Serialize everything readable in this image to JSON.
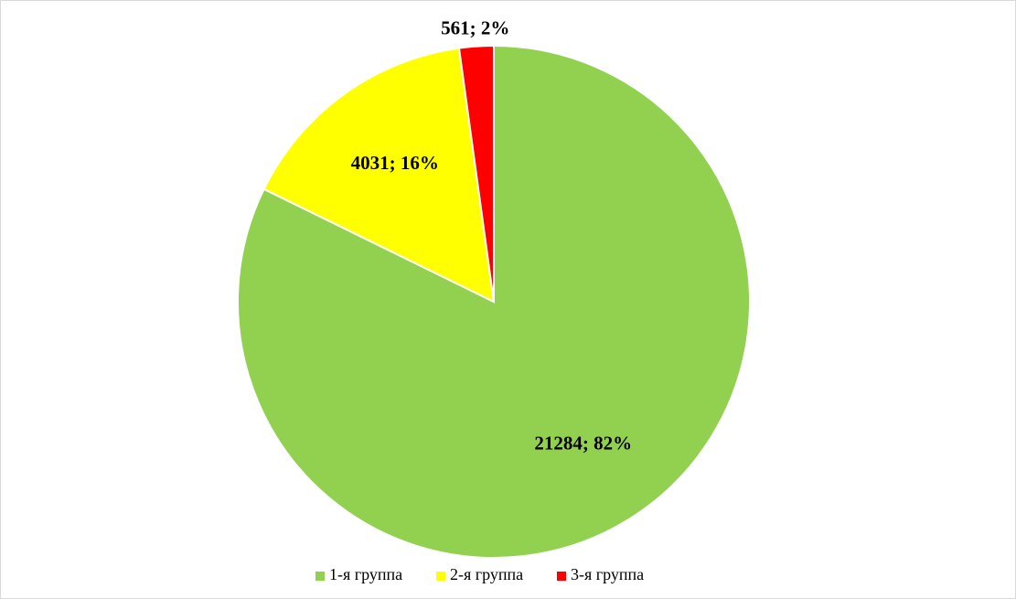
{
  "chart_data": {
    "type": "pie",
    "categories": [
      "1-я группа",
      "2-я группа",
      "3-я группа"
    ],
    "values": [
      21284,
      4031,
      561
    ],
    "value_labels": [
      "21284; 82%",
      "4031; 16%",
      "561; 2%"
    ],
    "colors": [
      "#92d050",
      "#ffff00",
      "#ff0000"
    ],
    "legend": "bottom"
  }
}
